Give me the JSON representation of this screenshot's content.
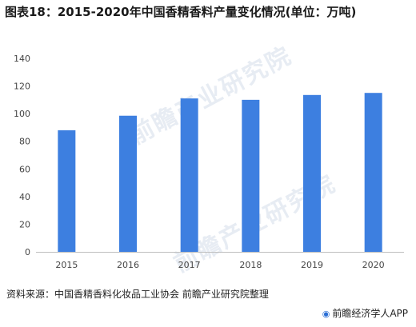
{
  "title": "图表18：2015-2020年中国香精香料产量变化情况(单位：万吨)",
  "source": "资料来源：中国香精香料化妆品工业协会 前瞻产业研究院整理",
  "brand": "前瞻经济学人APP",
  "watermark": "前瞻产业研究院",
  "colors": {
    "bar": "#3d7fe0",
    "axis": "#bfbfbf",
    "text": "#444444"
  },
  "chart_data": {
    "type": "bar",
    "categories": [
      "2015",
      "2016",
      "2017",
      "2018",
      "2019",
      "2020"
    ],
    "values": [
      88,
      98.5,
      111,
      110,
      113.5,
      115
    ],
    "title": "",
    "xlabel": "",
    "ylabel": "",
    "ylim": [
      0,
      140
    ],
    "yticks": [
      0,
      20,
      40,
      60,
      80,
      100,
      120,
      140
    ],
    "grid": false,
    "legend": "none"
  }
}
